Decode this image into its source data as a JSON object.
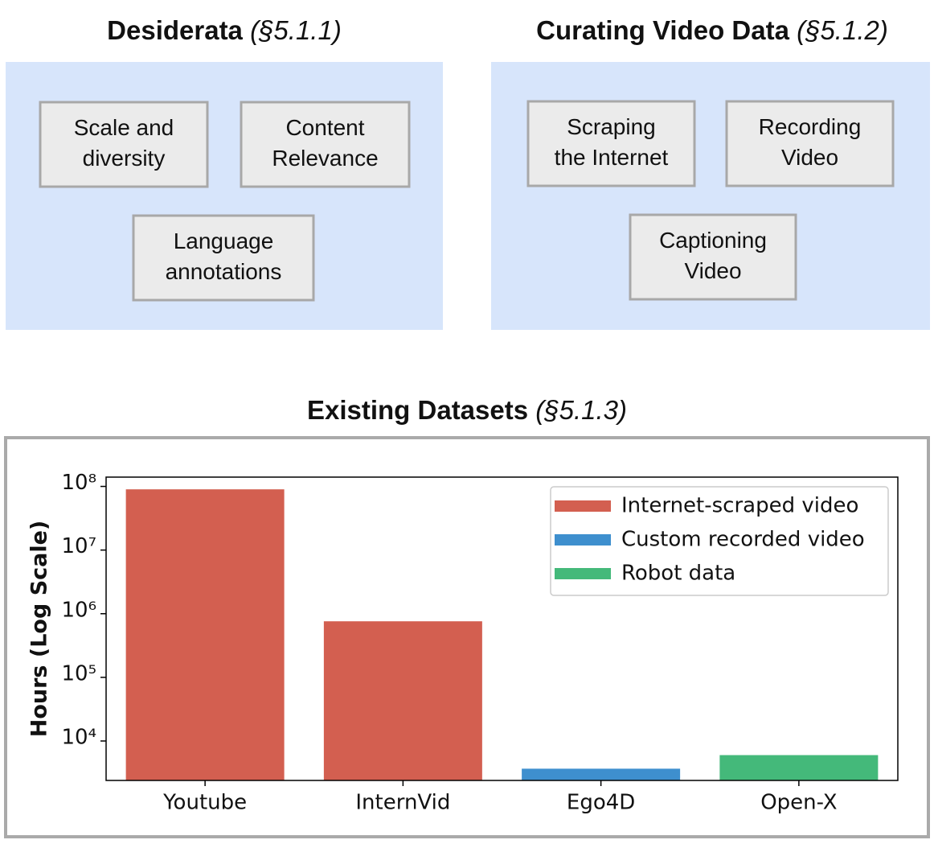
{
  "panels": [
    {
      "title": "Desiderata",
      "section": "(§5.1.1)",
      "boxes": [
        [
          "Scale and",
          "diversity"
        ],
        [
          "Content",
          "Relevance"
        ],
        [
          "Language",
          "annotations"
        ]
      ]
    },
    {
      "title": "Curating Video Data",
      "section": "(§5.1.2)",
      "boxes": [
        [
          "Scraping",
          "the Internet"
        ],
        [
          "Recording",
          "Video"
        ],
        [
          "Captioning",
          "Video"
        ]
      ]
    }
  ],
  "chart_data": {
    "type": "bar",
    "title": "Existing Datasets",
    "section": "(§5.1.3)",
    "y_label": "Hours (Log Scale)",
    "log_scale": true,
    "categories": [
      "Youtube",
      "InternVid",
      "Ego4D",
      "Open-X"
    ],
    "series": [
      {
        "name": "Internet-scraped video",
        "color": "#d35f50",
        "values": [
          90000000,
          760000,
          null,
          null
        ]
      },
      {
        "name": "Custom recorded video",
        "color": "#3e8fce",
        "values": [
          null,
          null,
          3670,
          null
        ]
      },
      {
        "name": "Robot data",
        "color": "#44b97a",
        "values": [
          null,
          null,
          null,
          6000
        ]
      }
    ],
    "ylim": [
      2400,
      140000000
    ],
    "yticks": [
      {
        "value": 10000,
        "label": "10⁴"
      },
      {
        "value": 100000,
        "label": "10⁵"
      },
      {
        "value": 1000000,
        "label": "10⁶"
      },
      {
        "value": 10000000,
        "label": "10⁷"
      },
      {
        "value": 100000000,
        "label": "10⁸"
      }
    ],
    "legend": "upper right"
  }
}
